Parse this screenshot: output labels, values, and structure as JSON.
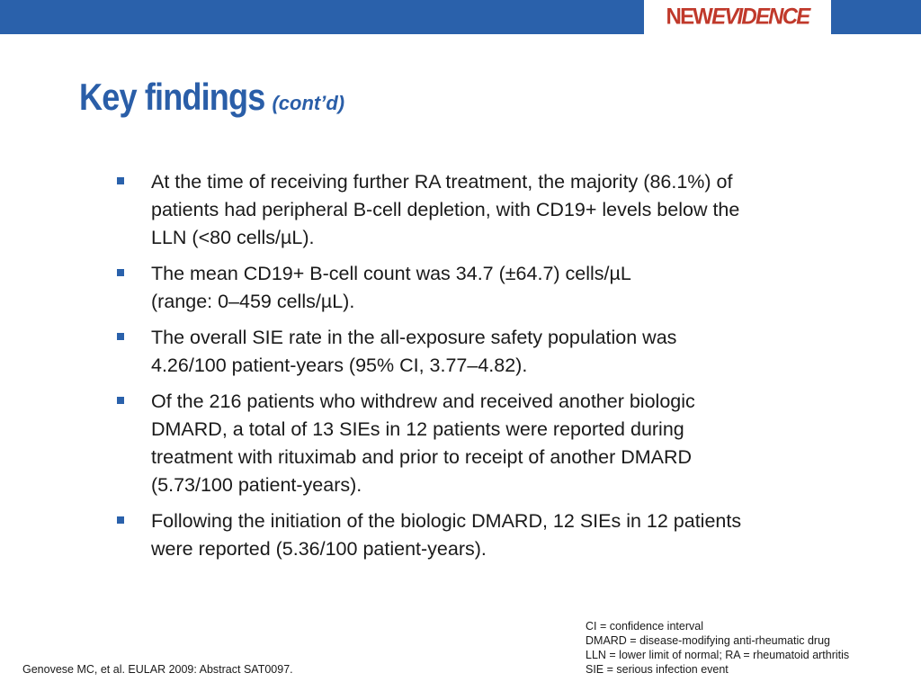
{
  "header": {
    "logo": {
      "part1": "NEW",
      "part2": "EVIDENCE"
    },
    "colors": {
      "bar": "#2a61ab",
      "logo": "#c0392b",
      "title": "#2a5ea8"
    }
  },
  "slide": {
    "title": "Key findings",
    "subtitle": "(cont’d)",
    "bullets": [
      {
        "text": "At the time of receiving further RA treatment, the majority (86.1%) of\npatients had peripheral B-cell depletion, with CD19+ levels below the\nLLN (<80 cells/µL)."
      },
      {
        "text": "The mean CD19+ B-cell count was 34.7 (±64.7) cells/µL\n(range: 0–459 cells/µL)."
      },
      {
        "text": "The overall SIE rate in the all-exposure safety population was\n4.26/100 patient-years (95% CI, 3.77–4.82)."
      },
      {
        "text": "Of the 216 patients who withdrew and received another biologic\nDMARD, a total of 13 SIEs in 12 patients were reported during\ntreatment with rituximab and prior to receipt of another DMARD\n(5.73/100 patient-years)."
      },
      {
        "text": "Following the initiation of the biologic DMARD, 12 SIEs in 12 patients\nwere reported (5.36/100 patient-years)."
      }
    ],
    "abbreviations": [
      "CI = confidence interval",
      "DMARD = disease-modifying anti-rheumatic drug",
      "LLN = lower limit of normal; RA = rheumatoid arthritis",
      "SIE = serious infection event"
    ],
    "citation": "Genovese MC, et al. EULAR 2009: Abstract SAT0097."
  }
}
